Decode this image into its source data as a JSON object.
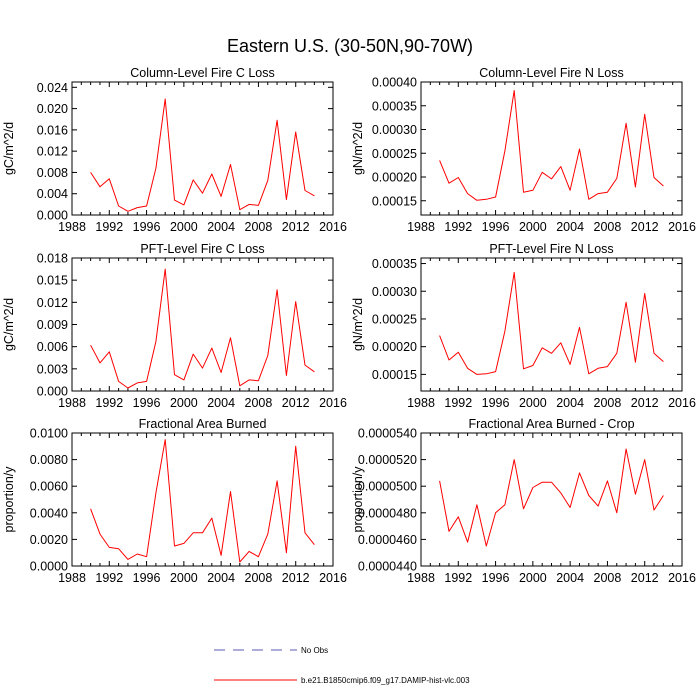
{
  "figure_title": "Eastern U.S. (30-50N,90-70W)",
  "legend": {
    "entries": [
      {
        "label": "No Obs",
        "style": "dashed",
        "color": "#5a5ab4"
      },
      {
        "label": "b.e21.B1850cmip6.f09_g17.DAMIP-hist-vlc.003",
        "style": "solid",
        "color": "#ff0000"
      }
    ]
  },
  "chart_data": [
    {
      "type": "line",
      "title": "Column-Level Fire C Loss",
      "ylabel": "gC/m^2/d",
      "xlim": [
        1988,
        2016
      ],
      "ylim": [
        0,
        0.025
      ],
      "xticks": [
        1988,
        1992,
        1996,
        2000,
        2004,
        2008,
        2012,
        2016
      ],
      "xtick_labels": [
        "1988",
        "1992",
        "1996",
        "2000",
        "2004",
        "2008",
        "2012",
        "2016"
      ],
      "yticks": [
        0,
        0.004,
        0.008,
        0.012,
        0.016,
        0.02,
        0.024
      ],
      "ytick_labels": [
        "0.000",
        "0.004",
        "0.008",
        "0.012",
        "0.016",
        "0.020",
        "0.024"
      ],
      "series": [
        {
          "name": "b.e21.B1850cmip6.f09_g17.DAMIP-hist-vlc.003",
          "color": "#ff0000",
          "x": [
            1990,
            1991,
            1992,
            1993,
            1994,
            1995,
            1996,
            1997,
            1998,
            1999,
            2000,
            2001,
            2002,
            2003,
            2004,
            2005,
            2006,
            2007,
            2008,
            2009,
            2010,
            2011,
            2012,
            2013,
            2014
          ],
          "y": [
            0.008,
            0.0053,
            0.0068,
            0.0017,
            0.0007,
            0.0014,
            0.0017,
            0.0088,
            0.0218,
            0.0028,
            0.0019,
            0.0066,
            0.0041,
            0.0077,
            0.0035,
            0.0095,
            0.001,
            0.002,
            0.0018,
            0.0065,
            0.0178,
            0.0029,
            0.0156,
            0.0046,
            0.0036
          ]
        }
      ]
    },
    {
      "type": "line",
      "title": "Column-Level Fire N Loss",
      "ylabel": "gN/m^2/d",
      "xlim": [
        1988,
        2016
      ],
      "ylim": [
        0.00012,
        0.0004
      ],
      "xticks": [
        1988,
        1992,
        1996,
        2000,
        2004,
        2008,
        2012,
        2016
      ],
      "xtick_labels": [
        "1988",
        "1992",
        "1996",
        "2000",
        "2004",
        "2008",
        "2012",
        "2016"
      ],
      "yticks": [
        0.00015,
        0.0002,
        0.00025,
        0.0003,
        0.00035,
        0.0004
      ],
      "ytick_labels": [
        "0.00015",
        "0.00020",
        "0.00025",
        "0.00030",
        "0.00035",
        "0.00040"
      ],
      "series": [
        {
          "name": "b.e21.B1850cmip6.f09_g17.DAMIP-hist-vlc.003",
          "color": "#ff0000",
          "x": [
            1990,
            1991,
            1992,
            1993,
            1994,
            1995,
            1996,
            1997,
            1998,
            1999,
            2000,
            2001,
            2002,
            2003,
            2004,
            2005,
            2006,
            2007,
            2008,
            2009,
            2010,
            2011,
            2012,
            2013,
            2014
          ],
          "y": [
            0.000235,
            0.000187,
            0.000199,
            0.000165,
            0.000151,
            0.000153,
            0.000158,
            0.000255,
            0.000382,
            0.000168,
            0.000172,
            0.00021,
            0.000196,
            0.000222,
            0.000172,
            0.000259,
            0.000153,
            0.000165,
            0.000168,
            0.000197,
            0.000313,
            0.000179,
            0.000332,
            0.000199,
            0.000181
          ]
        }
      ]
    },
    {
      "type": "line",
      "title": "PFT-Level Fire C Loss",
      "ylabel": "gC/m^2/d",
      "xlim": [
        1988,
        2016
      ],
      "ylim": [
        0,
        0.018
      ],
      "xticks": [
        1988,
        1992,
        1996,
        2000,
        2004,
        2008,
        2012,
        2016
      ],
      "xtick_labels": [
        "1988",
        "1992",
        "1996",
        "2000",
        "2004",
        "2008",
        "2012",
        "2016"
      ],
      "yticks": [
        0,
        0.003,
        0.006,
        0.009,
        0.012,
        0.015,
        0.018
      ],
      "ytick_labels": [
        "0.000",
        "0.003",
        "0.006",
        "0.009",
        "0.012",
        "0.015",
        "0.018"
      ],
      "series": [
        {
          "name": "b.e21.B1850cmip6.f09_g17.DAMIP-hist-vlc.003",
          "color": "#ff0000",
          "x": [
            1990,
            1991,
            1992,
            1993,
            1994,
            1995,
            1996,
            1997,
            1998,
            1999,
            2000,
            2001,
            2002,
            2003,
            2004,
            2005,
            2006,
            2007,
            2008,
            2009,
            2010,
            2011,
            2012,
            2013,
            2014
          ],
          "y": [
            0.0062,
            0.0038,
            0.0053,
            0.0013,
            0.0004,
            0.0011,
            0.0013,
            0.0067,
            0.0165,
            0.0022,
            0.0015,
            0.005,
            0.0031,
            0.0058,
            0.0025,
            0.0072,
            0.0007,
            0.0015,
            0.0014,
            0.0048,
            0.0137,
            0.0021,
            0.0121,
            0.0035,
            0.0026
          ]
        }
      ]
    },
    {
      "type": "line",
      "title": "PFT-Level Fire N Loss",
      "ylabel": "gN/m^2/d",
      "xlim": [
        1988,
        2016
      ],
      "ylim": [
        0.00012,
        0.00036
      ],
      "xticks": [
        1988,
        1992,
        1996,
        2000,
        2004,
        2008,
        2012,
        2016
      ],
      "xtick_labels": [
        "1988",
        "1992",
        "1996",
        "2000",
        "2004",
        "2008",
        "2012",
        "2016"
      ],
      "yticks": [
        0.00015,
        0.0002,
        0.00025,
        0.0003,
        0.00035
      ],
      "ytick_labels": [
        "0.00015",
        "0.00020",
        "0.00025",
        "0.00030",
        "0.00035"
      ],
      "series": [
        {
          "name": "b.e21.B1850cmip6.f09_g17.DAMIP-hist-vlc.003",
          "color": "#ff0000",
          "x": [
            1990,
            1991,
            1992,
            1993,
            1994,
            1995,
            1996,
            1997,
            1998,
            1999,
            2000,
            2001,
            2002,
            2003,
            2004,
            2005,
            2006,
            2007,
            2008,
            2009,
            2010,
            2011,
            2012,
            2013,
            2014
          ],
          "y": [
            0.00022,
            0.000176,
            0.00019,
            0.000161,
            0.00015,
            0.000151,
            0.000155,
            0.000228,
            0.000334,
            0.00016,
            0.000166,
            0.000198,
            0.000188,
            0.000207,
            0.000168,
            0.000235,
            0.000151,
            0.000161,
            0.000164,
            0.000188,
            0.00028,
            0.000172,
            0.000296,
            0.000188,
            0.000173
          ]
        }
      ]
    },
    {
      "type": "line",
      "title": "Fractional Area Burned",
      "ylabel": "proportion/y",
      "xlim": [
        1988,
        2016
      ],
      "ylim": [
        0,
        0.01
      ],
      "xticks": [
        1988,
        1992,
        1996,
        2000,
        2004,
        2008,
        2012,
        2016
      ],
      "xtick_labels": [
        "1988",
        "1992",
        "1996",
        "2000",
        "2004",
        "2008",
        "2012",
        "2016"
      ],
      "yticks": [
        0,
        0.002,
        0.004,
        0.006,
        0.008,
        0.01
      ],
      "ytick_labels": [
        "0.0000",
        "0.0020",
        "0.0040",
        "0.0060",
        "0.0080",
        "0.0100"
      ],
      "series": [
        {
          "name": "b.e21.B1850cmip6.f09_g17.DAMIP-hist-vlc.003",
          "color": "#ff0000",
          "x": [
            1990,
            1991,
            1992,
            1993,
            1994,
            1995,
            1996,
            1997,
            1998,
            1999,
            2000,
            2001,
            2002,
            2003,
            2004,
            2005,
            2006,
            2007,
            2008,
            2009,
            2010,
            2011,
            2012,
            2013,
            2014
          ],
          "y": [
            0.0043,
            0.0024,
            0.0014,
            0.0013,
            0.0005,
            0.0009,
            0.0007,
            0.0055,
            0.0095,
            0.0015,
            0.0017,
            0.0025,
            0.0025,
            0.0036,
            0.0008,
            0.0056,
            0.0003,
            0.0011,
            0.0007,
            0.0024,
            0.0064,
            0.001,
            0.009,
            0.0025,
            0.0016
          ]
        }
      ]
    },
    {
      "type": "line",
      "title": "Fractional Area Burned - Crop",
      "ylabel": "proportion/y",
      "xlim": [
        1988,
        2016
      ],
      "ylim": [
        4.4e-05,
        5.4e-05
      ],
      "xticks": [
        1988,
        1992,
        1996,
        2000,
        2004,
        2008,
        2012,
        2016
      ],
      "xtick_labels": [
        "1988",
        "1992",
        "1996",
        "2000",
        "2004",
        "2008",
        "2012",
        "2016"
      ],
      "yticks": [
        4.4e-05,
        4.6e-05,
        4.8e-05,
        5e-05,
        5.2e-05,
        5.4e-05
      ],
      "ytick_labels": [
        "0.0000440",
        "0.0000460",
        "0.0000480",
        "0.0000500",
        "0.0000520",
        "0.0000540"
      ],
      "series": [
        {
          "name": "b.e21.B1850cmip6.f09_g17.DAMIP-hist-vlc.003",
          "color": "#ff0000",
          "x": [
            1990,
            1991,
            1992,
            1993,
            1994,
            1995,
            1996,
            1997,
            1998,
            1999,
            2000,
            2001,
            2002,
            2003,
            2004,
            2005,
            2006,
            2007,
            2008,
            2009,
            2010,
            2011,
            2012,
            2013,
            2014
          ],
          "y": [
            5.04e-05,
            4.66e-05,
            4.77e-05,
            4.58e-05,
            4.86e-05,
            4.55e-05,
            4.8e-05,
            4.86e-05,
            5.2e-05,
            4.83e-05,
            4.99e-05,
            5.03e-05,
            5.03e-05,
            4.95e-05,
            4.84e-05,
            5.1e-05,
            4.93e-05,
            4.85e-05,
            5.04e-05,
            4.8e-05,
            5.28e-05,
            4.94e-05,
            5.2e-05,
            4.82e-05,
            4.93e-05
          ]
        }
      ]
    }
  ]
}
